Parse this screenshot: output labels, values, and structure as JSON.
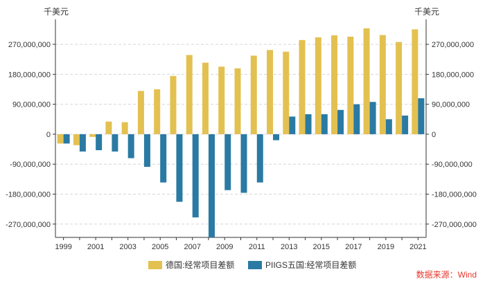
{
  "chart_data": {
    "type": "bar",
    "unit_left": "千美元",
    "unit_right": "千美元",
    "categories": [
      "1999",
      "2000",
      "2001",
      "2002",
      "2003",
      "2004",
      "2005",
      "2006",
      "2007",
      "2008",
      "2009",
      "2010",
      "2011",
      "2012",
      "2013",
      "2014",
      "2015",
      "2016",
      "2017",
      "2018",
      "2019",
      "2020",
      "2021"
    ],
    "x_tick_labels": [
      "1999",
      "2001",
      "2003",
      "2005",
      "2007",
      "2009",
      "2011",
      "2013",
      "2015",
      "2017",
      "2019",
      "2021"
    ],
    "series": [
      {
        "name": "德国:经常项目差额",
        "color": "#e3c151",
        "values": [
          -28000000,
          -33000000,
          -8000000,
          38000000,
          36000000,
          130000000,
          135000000,
          175000000,
          238000000,
          215000000,
          203000000,
          198000000,
          236000000,
          253000000,
          248000000,
          283000000,
          291000000,
          297000000,
          293000000,
          318000000,
          298000000,
          277000000,
          315000000
        ]
      },
      {
        "name": "PIIGS五国:经常项目差额",
        "color": "#2a7aa3",
        "values": [
          -28000000,
          -52000000,
          -48000000,
          -52000000,
          -72000000,
          -98000000,
          -145000000,
          -203000000,
          -250000000,
          -310000000,
          -168000000,
          -176000000,
          -145000000,
          -18000000,
          53000000,
          60000000,
          60000000,
          73000000,
          90000000,
          97000000,
          45000000,
          56000000,
          108000000
        ]
      }
    ],
    "y_ticks": [
      -270000000,
      -180000000,
      -90000000,
      0,
      90000000,
      180000000,
      270000000
    ],
    "y_tick_labels": [
      "-270,000,000",
      "-180,000,000",
      "-90,000,000",
      "0",
      "90,000,000",
      "180,000,000",
      "270,000,000"
    ],
    "ylim": [
      -310000000,
      345000000
    ],
    "grid": true,
    "legend_position": "bottom-center",
    "source": "数据来源：Wind"
  }
}
